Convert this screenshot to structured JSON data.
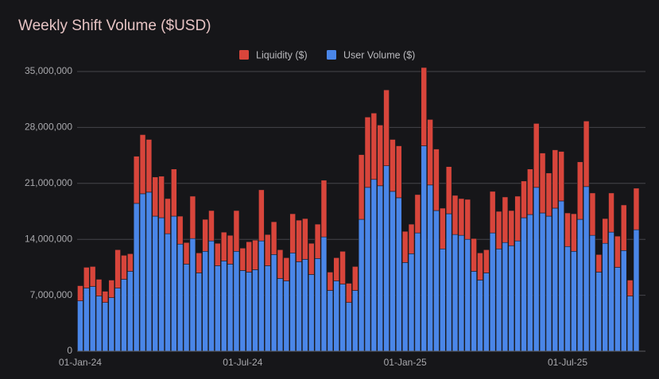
{
  "chart_data": {
    "type": "stacked_bar",
    "title": "Weekly Shift Volume ($USD)",
    "categories": [
      "01-Jan-24",
      null,
      null,
      null,
      null,
      null,
      null,
      null,
      null,
      null,
      null,
      null,
      null,
      null,
      null,
      null,
      null,
      null,
      null,
      null,
      null,
      null,
      null,
      null,
      null,
      null,
      "01-Jul-24",
      null,
      null,
      null,
      null,
      null,
      null,
      null,
      null,
      null,
      null,
      null,
      null,
      null,
      null,
      null,
      null,
      null,
      null,
      null,
      null,
      null,
      null,
      null,
      null,
      null,
      "01-Jan-25",
      null,
      null,
      null,
      null,
      null,
      null,
      null,
      null,
      null,
      null,
      null,
      null,
      null,
      null,
      null,
      null,
      null,
      null,
      null,
      null,
      null,
      null,
      null,
      null,
      null,
      "01-Jul-25",
      null,
      null,
      null,
      null,
      null,
      null,
      null,
      null,
      null,
      null,
      null
    ],
    "series": [
      {
        "name": "Liquidity ($)",
        "color": "#d8453b",
        "values": [
          1900000,
          2600000,
          2500000,
          2100000,
          1400000,
          2200000,
          4800000,
          3000000,
          2200000,
          5900000,
          7400000,
          6600000,
          4900000,
          5200000,
          4400000,
          5900000,
          3500000,
          2700000,
          5300000,
          2500000,
          4000000,
          3800000,
          2800000,
          3600000,
          3600000,
          5100000,
          2800000,
          3800000,
          3700000,
          6400000,
          3900000,
          4100000,
          3600000,
          2900000,
          4900000,
          5200000,
          5100000,
          3900000,
          4300000,
          7100000,
          2300000,
          2900000,
          4100000,
          2400000,
          3000000,
          8100000,
          8800000,
          8300000,
          7600000,
          9500000,
          6500000,
          6500000,
          3900000,
          3700000,
          4800000,
          9800000,
          8200000,
          7700000,
          5100000,
          5900000,
          4900000,
          4600000,
          5000000,
          4100000,
          3400000,
          2900000,
          5200000,
          4700000,
          5700000,
          4400000,
          5600000,
          4600000,
          5700000,
          8000000,
          7500000,
          5400000,
          7300000,
          6200000,
          4200000,
          4700000,
          7200000,
          8200000,
          5300000,
          2200000,
          3100000,
          4900000,
          3900000,
          5700000,
          2000000,
          5200000
        ]
      },
      {
        "name": "User Volume ($)",
        "color": "#4a86e8",
        "values": [
          6300000,
          7900000,
          8100000,
          6900000,
          6100000,
          6700000,
          7900000,
          9000000,
          10000000,
          18500000,
          19700000,
          19900000,
          16900000,
          16700000,
          14700000,
          16900000,
          13400000,
          10900000,
          14100000,
          9800000,
          12500000,
          13800000,
          10700000,
          11300000,
          10900000,
          12500000,
          10100000,
          9900000,
          10200000,
          13800000,
          10700000,
          12100000,
          9100000,
          8800000,
          12300000,
          11200000,
          11500000,
          9600000,
          11600000,
          14300000,
          7600000,
          8800000,
          8400000,
          6100000,
          7600000,
          16500000,
          20500000,
          21500000,
          20700000,
          23200000,
          20000000,
          19200000,
          11100000,
          12200000,
          14800000,
          25700000,
          20800000,
          17600000,
          12800000,
          17200000,
          14600000,
          14500000,
          14000000,
          10000000,
          8900000,
          9800000,
          14800000,
          12800000,
          13600000,
          13200000,
          13800000,
          16700000,
          17100000,
          20500000,
          17300000,
          16900000,
          17900000,
          18800000,
          13100000,
          12500000,
          16500000,
          20600000,
          14500000,
          9900000,
          13500000,
          14900000,
          10500000,
          12600000,
          6900000,
          15200000
        ]
      }
    ],
    "stack_order": [
      "User Volume ($)",
      "Liquidity ($)"
    ],
    "ylim": [
      0,
      35000000
    ],
    "yticks": [
      0,
      {
        "value": 7000000,
        "label": "7,000,000"
      },
      {
        "value": 14000000,
        "label": "14,000,000"
      },
      {
        "value": 21000000,
        "label": "21,000,000"
      },
      {
        "value": 28000000,
        "label": "28,000,000"
      },
      {
        "value": 35000000,
        "label": "35,000,000"
      }
    ],
    "grid": true,
    "legend": "top"
  }
}
